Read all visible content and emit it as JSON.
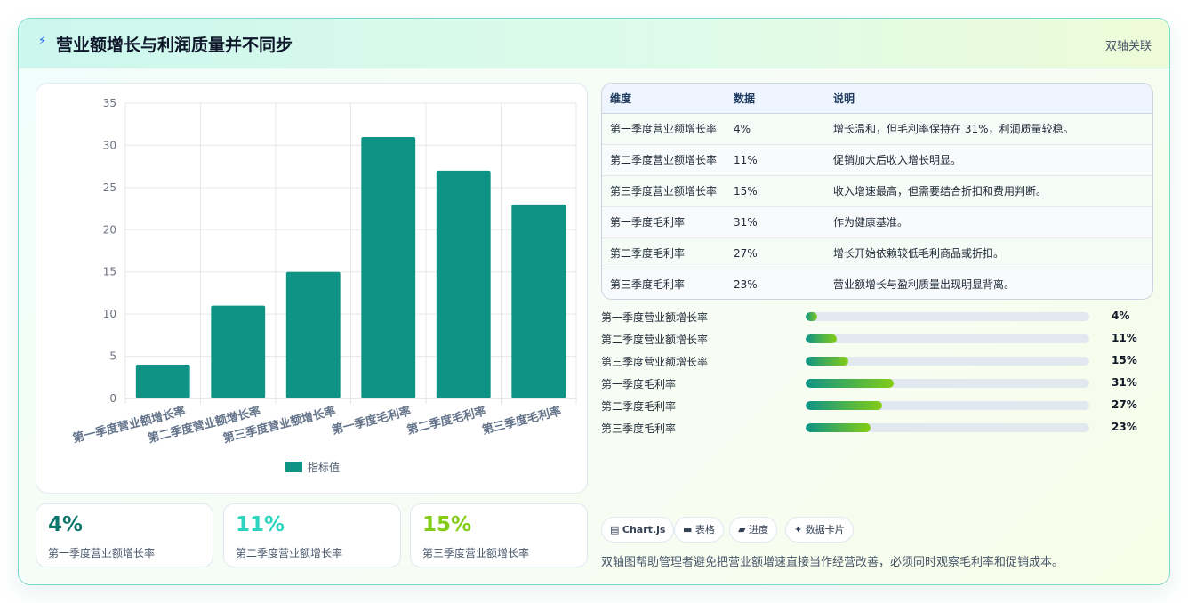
{
  "header": {
    "icon": "lightning-icon",
    "title": "营业额增长与利润质量并不同步",
    "tag": "双轴关联"
  },
  "chart_data": {
    "type": "bar",
    "categories": [
      "第一季度营业额增长率",
      "第二季度营业额增长率",
      "第三季度营业额增长率",
      "第一季度毛利率",
      "第二季度毛利率",
      "第三季度毛利率"
    ],
    "series": [
      {
        "name": "指标值",
        "values": [
          4,
          11,
          15,
          31,
          27,
          23
        ],
        "color": "#0e9384"
      }
    ],
    "ylim": [
      0,
      35
    ],
    "yticks": [
      0,
      5,
      10,
      15,
      20,
      25,
      30,
      35
    ],
    "grid": true,
    "legend": "bottom"
  },
  "kpis": [
    {
      "value": "4%",
      "label": "第一季度营业额增长率",
      "color": "#0f766e"
    },
    {
      "value": "11%",
      "label": "第二季度营业额增长率",
      "color": "#2dd4bf"
    },
    {
      "value": "15%",
      "label": "第三季度营业额增长率",
      "color": "#84cc16"
    }
  ],
  "table": {
    "headers": [
      "维度",
      "数据",
      "说明"
    ],
    "rows": [
      [
        "第一季度营业额增长率",
        "4%",
        "增长温和，但毛利率保持在 31%，利润质量较稳。"
      ],
      [
        "第二季度营业额增长率",
        "11%",
        "促销加大后收入增长明显。"
      ],
      [
        "第三季度营业额增长率",
        "15%",
        "收入增速最高，但需要结合折扣和费用判断。"
      ],
      [
        "第一季度毛利率",
        "31%",
        "作为健康基准。"
      ],
      [
        "第二季度毛利率",
        "27%",
        "增长开始依赖较低毛利商品或折扣。"
      ],
      [
        "第三季度毛利率",
        "23%",
        "营业额增长与盈利质量出现明显背离。"
      ]
    ]
  },
  "progress": [
    {
      "label": "第一季度营业额增长率",
      "value": "4%",
      "pct": 4
    },
    {
      "label": "第二季度营业额增长率",
      "value": "11%",
      "pct": 11
    },
    {
      "label": "第三季度营业额增长率",
      "value": "15%",
      "pct": 15
    },
    {
      "label": "第一季度毛利率",
      "value": "31%",
      "pct": 31
    },
    {
      "label": "第二季度毛利率",
      "value": "27%",
      "pct": 27
    },
    {
      "label": "第三季度毛利率",
      "value": "23%",
      "pct": 23
    }
  ],
  "chips": [
    {
      "icon": "chart-icon",
      "glyph": "▤",
      "label": "Chart.js"
    },
    {
      "icon": "table-icon",
      "glyph": "▬",
      "label": "表格"
    },
    {
      "icon": "progress-icon",
      "glyph": "▰",
      "label": "进度"
    },
    {
      "icon": "sparkle-icon",
      "glyph": "✦",
      "label": "数据卡片"
    }
  ],
  "footnote": "双轴图帮助管理者避免把营业额增速直接当作经营改善，必须同时观察毛利率和促销成本。"
}
